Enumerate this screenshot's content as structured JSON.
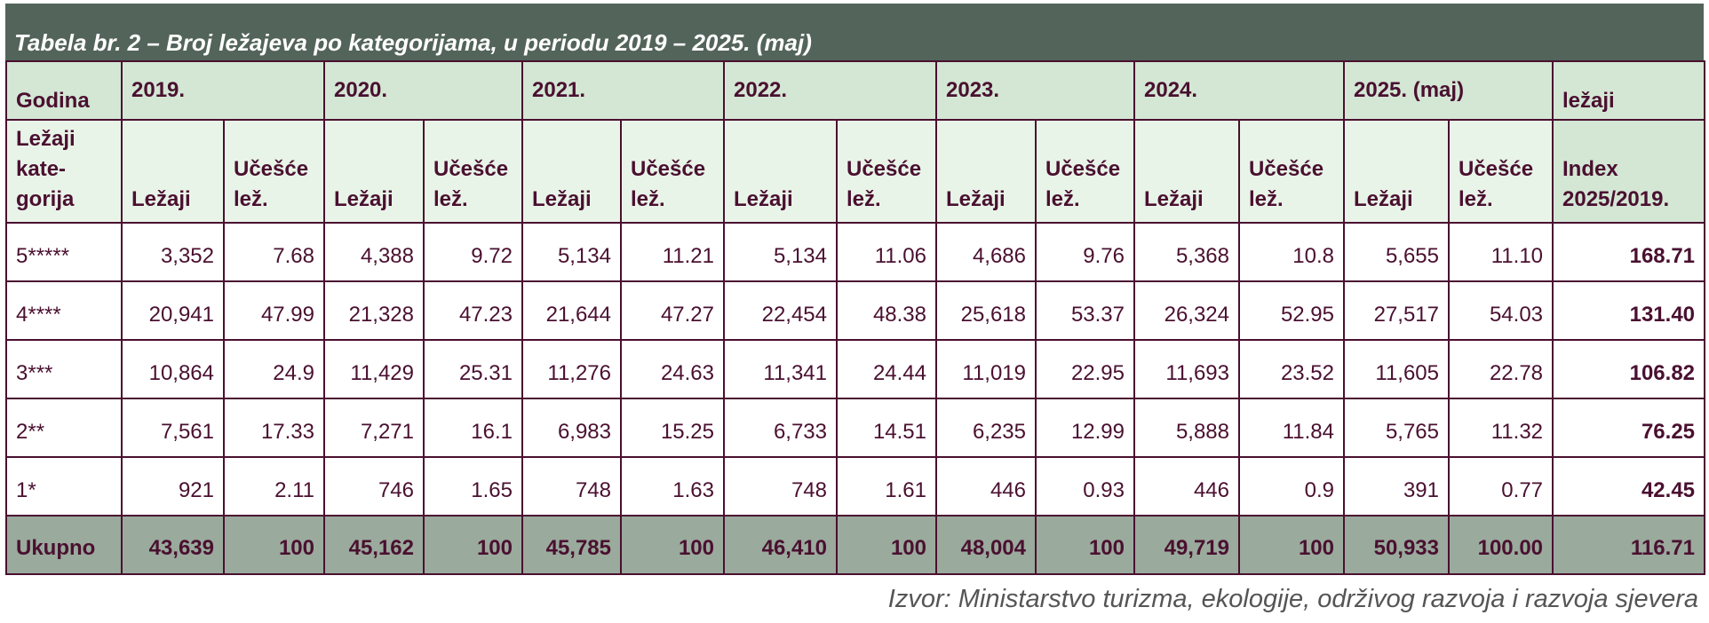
{
  "title": "Tabela br. 2 – Broj ležajeva po kategorijama, u periodu 2019 – 2025. (maj)",
  "header": {
    "godina": "Godina",
    "years": [
      "2019.",
      "2020.",
      "2021.",
      "2022.",
      "2023.",
      "2024.",
      "2025. (maj)"
    ],
    "lezaji_header": "ležaji",
    "kategorija": "Ležaji kate- gorija",
    "col_lezaji": "Ležaji",
    "col_ucesce": "Učešće lež.",
    "index": "Index 2025/2019."
  },
  "rows": [
    {
      "category": "5*****",
      "values": [
        "3,352",
        "7.68",
        "4,388",
        "9.72",
        "5,134",
        "11.21",
        "5,134",
        "11.06",
        "4,686",
        "9.76",
        "5,368",
        "10.8",
        "5,655",
        "11.10"
      ],
      "index": "168.71"
    },
    {
      "category": "4****",
      "values": [
        "20,941",
        "47.99",
        "21,328",
        "47.23",
        "21,644",
        "47.27",
        "22,454",
        "48.38",
        "25,618",
        "53.37",
        "26,324",
        "52.95",
        "27,517",
        "54.03"
      ],
      "index": "131.40"
    },
    {
      "category": "3***",
      "values": [
        "10,864",
        "24.9",
        "11,429",
        "25.31",
        "11,276",
        "24.63",
        "11,341",
        "24.44",
        "11,019",
        "22.95",
        "11,693",
        "23.52",
        "11,605",
        "22.78"
      ],
      "index": "106.82"
    },
    {
      "category": "2**",
      "values": [
        "7,561",
        "17.33",
        "7,271",
        "16.1",
        "6,983",
        "15.25",
        "6,733",
        "14.51",
        "6,235",
        "12.99",
        "5,888",
        "11.84",
        "5,765",
        "11.32"
      ],
      "index": "76.25"
    },
    {
      "category": "1*",
      "values": [
        "921",
        "2.11",
        "746",
        "1.65",
        "748",
        "1.63",
        "748",
        "1.61",
        "446",
        "0.93",
        "446",
        "0.9",
        "391",
        "0.77"
      ],
      "index": "42.45"
    }
  ],
  "total": {
    "category": "Ukupno",
    "values": [
      "43,639",
      "100",
      "45,162",
      "100",
      "45,785",
      "100",
      "46,410",
      "100",
      "48,004",
      "100",
      "49,719",
      "100",
      "50,933",
      "100.00"
    ],
    "index": "116.71"
  },
  "source": "Izvor: Ministarstvo turizma, ekologije, održivog razvoja i razvoja sjevera"
}
